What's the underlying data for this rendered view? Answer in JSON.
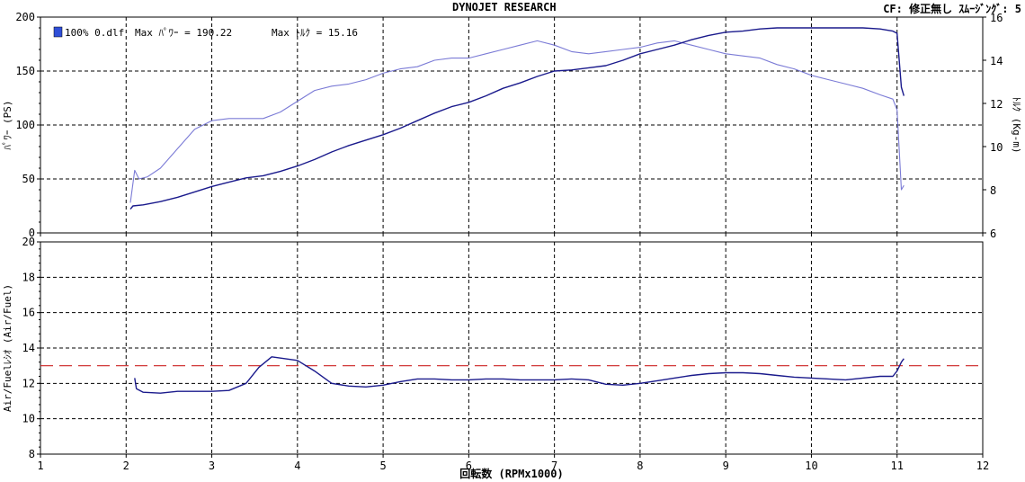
{
  "header": {
    "title": "DYNOJET  RESEARCH",
    "correction": "CF: 修正無し  ｽﾑｰｼﾞﾝｸﾞ: 5"
  },
  "legend": {
    "run_label": "100% 0.dlf",
    "max_power": "Max ﾊﾟﾜｰ = 190.22",
    "max_torque": "Max ﾄﾙｸ = 15.16"
  },
  "colors": {
    "power": "#1a1a8c",
    "torque": "#7b7bd6",
    "afr": "#1a1a8c",
    "target": "#cc2222",
    "grid": "#000000",
    "legend_swatch": "#2f4fd8"
  },
  "chart_data": [
    {
      "type": "line",
      "xlabel": "回転数 (RPMx1000)",
      "xlim": [
        1,
        12
      ],
      "x_ticks": [
        "1",
        "2",
        "3",
        "4",
        "5",
        "6",
        "7",
        "8",
        "9",
        "10",
        "11",
        "12"
      ],
      "ylabel": "ﾊﾟﾜｰ (PS)",
      "ylim": [
        0,
        200
      ],
      "y_ticks": [
        "0",
        "50",
        "100",
        "150",
        "200"
      ],
      "y2label": "ﾄﾙｸ (Kg-m)",
      "y2lim": [
        6,
        16
      ],
      "y2_ticks": [
        "6",
        "8",
        "10",
        "12",
        "14",
        "16"
      ],
      "grid": true,
      "legend_position": "top-left",
      "series": [
        {
          "name": "Max ﾊﾟﾜｰ = 190.22",
          "axis": "left",
          "x": [
            2.05,
            2.08,
            2.2,
            2.4,
            2.6,
            2.8,
            3.0,
            3.2,
            3.4,
            3.6,
            3.8,
            4.0,
            4.2,
            4.4,
            4.6,
            4.8,
            5.0,
            5.2,
            5.4,
            5.6,
            5.8,
            6.0,
            6.2,
            6.4,
            6.6,
            6.8,
            7.0,
            7.2,
            7.4,
            7.6,
            7.8,
            8.0,
            8.2,
            8.4,
            8.6,
            8.8,
            9.0,
            9.2,
            9.4,
            9.6,
            9.8,
            10.0,
            10.2,
            10.4,
            10.6,
            10.8,
            10.95,
            11.0,
            11.05,
            11.08
          ],
          "values": [
            22,
            25,
            26,
            29,
            33,
            38,
            43,
            47,
            51,
            53,
            57,
            62,
            68,
            75,
            81,
            86,
            91,
            97,
            104,
            111,
            117,
            121,
            127,
            134,
            139,
            145,
            150,
            151,
            153,
            155,
            160,
            166,
            170,
            174,
            179,
            183,
            186,
            187,
            189,
            190,
            190,
            190,
            190,
            190,
            190,
            189,
            187,
            185,
            135,
            127
          ]
        },
        {
          "name": "Max ﾄﾙｸ = 15.16",
          "axis": "right",
          "x": [
            2.05,
            2.1,
            2.15,
            2.25,
            2.4,
            2.6,
            2.8,
            3.0,
            3.2,
            3.4,
            3.6,
            3.8,
            4.0,
            4.2,
            4.4,
            4.6,
            4.8,
            5.0,
            5.2,
            5.4,
            5.6,
            5.8,
            6.0,
            6.2,
            6.4,
            6.6,
            6.8,
            7.0,
            7.2,
            7.4,
            7.6,
            7.8,
            8.0,
            8.2,
            8.4,
            8.6,
            8.8,
            9.0,
            9.2,
            9.4,
            9.6,
            9.8,
            10.0,
            10.2,
            10.4,
            10.6,
            10.8,
            10.95,
            11.0,
            11.05,
            11.08
          ],
          "values": [
            7.4,
            8.9,
            8.5,
            8.6,
            9.0,
            9.9,
            10.8,
            11.2,
            11.3,
            11.3,
            11.3,
            11.6,
            12.1,
            12.6,
            12.8,
            12.9,
            13.1,
            13.4,
            13.6,
            13.7,
            14.0,
            14.1,
            14.1,
            14.3,
            14.5,
            14.7,
            14.9,
            14.7,
            14.4,
            14.3,
            14.4,
            14.5,
            14.6,
            14.8,
            14.9,
            14.7,
            14.5,
            14.3,
            14.2,
            14.1,
            13.8,
            13.6,
            13.3,
            13.1,
            12.9,
            12.7,
            12.4,
            12.2,
            11.7,
            8.0,
            8.2
          ]
        }
      ]
    },
    {
      "type": "line",
      "xlabel": "回転数 (RPMx1000)",
      "xlim": [
        1,
        12
      ],
      "x_ticks": [
        "1",
        "2",
        "3",
        "4",
        "5",
        "6",
        "7",
        "8",
        "9",
        "10",
        "11",
        "12"
      ],
      "ylabel": "Air/Fuelﾚｼｵ (Air/Fuel)",
      "ylim": [
        8,
        20
      ],
      "y_ticks": [
        "8",
        "10",
        "12",
        "14",
        "16",
        "18",
        "20"
      ],
      "grid": true,
      "reference_line": 13.0,
      "series": [
        {
          "axis": "left",
          "x": [
            2.1,
            2.12,
            2.2,
            2.4,
            2.6,
            2.8,
            3.0,
            3.2,
            3.4,
            3.55,
            3.7,
            3.85,
            4.0,
            4.2,
            4.4,
            4.6,
            4.8,
            5.0,
            5.2,
            5.4,
            5.6,
            5.8,
            6.0,
            6.2,
            6.4,
            6.6,
            6.8,
            7.0,
            7.2,
            7.4,
            7.6,
            7.8,
            8.0,
            8.2,
            8.4,
            8.6,
            8.8,
            9.0,
            9.2,
            9.4,
            9.6,
            9.8,
            10.0,
            10.2,
            10.4,
            10.6,
            10.8,
            10.95,
            11.0,
            11.05,
            11.08
          ],
          "values": [
            12.3,
            11.7,
            11.5,
            11.45,
            11.55,
            11.55,
            11.55,
            11.6,
            12.0,
            12.9,
            13.5,
            13.4,
            13.3,
            12.7,
            12.0,
            11.85,
            11.8,
            11.9,
            12.1,
            12.25,
            12.25,
            12.2,
            12.2,
            12.25,
            12.25,
            12.2,
            12.2,
            12.2,
            12.25,
            12.2,
            11.95,
            11.9,
            12.0,
            12.15,
            12.3,
            12.45,
            12.55,
            12.6,
            12.6,
            12.55,
            12.45,
            12.35,
            12.3,
            12.25,
            12.2,
            12.3,
            12.4,
            12.4,
            12.7,
            13.2,
            13.4
          ]
        }
      ]
    }
  ]
}
